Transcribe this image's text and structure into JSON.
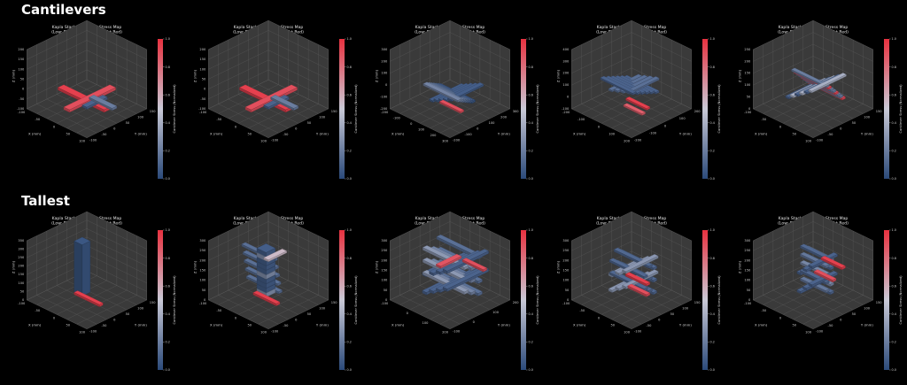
{
  "sections": [
    {
      "title": "Cantilevers"
    },
    {
      "title": "Tallest"
    }
  ],
  "panel_title_line1": "Kapla Stack Cantilever Stress Map",
  "panel_title_line2": "(Low: Deep Blue, High: Bright Red)",
  "colorbar_label": "Cantilever Stress (Normalized)",
  "colorbar_ticks": [
    "0.0",
    "0.2",
    "0.4",
    "0.6",
    "0.8",
    "1.0"
  ],
  "axis_labels": {
    "x": "X (mm)",
    "y": "Y (mm)",
    "z": "Z (mm)"
  },
  "colors": {
    "low": "#2b4a7a",
    "mid": "#c9c9d6",
    "high": "#e8313f",
    "background": "#000000",
    "pane": "#3a3a3a"
  },
  "chart_data": [
    {
      "type": "3d-bar",
      "section": "Cantilevers",
      "index": 1,
      "title": "Kapla Stack Cantilever Stress Map\n(Low: Deep Blue, High: Bright Red)",
      "z_ticks": [
        "200",
        "150",
        "100",
        "50",
        "0",
        "-50",
        "-100"
      ],
      "x_ticks": [
        "-100",
        "-50",
        "0",
        "50",
        "100"
      ],
      "y_ticks": [
        "150",
        "100",
        "50",
        "0",
        "-50",
        "-100"
      ],
      "stress_range": [
        0,
        1
      ]
    },
    {
      "type": "3d-bar",
      "section": "Cantilevers",
      "index": 2,
      "title": "Kapla Stack Cantilever Stress Map\n(Low: Deep Blue, High: Bright Red)",
      "z_ticks": [
        "200",
        "150",
        "100",
        "50",
        "0",
        "-50",
        "-100"
      ],
      "x_ticks": [
        "-100",
        "-50",
        "0",
        "50",
        "100"
      ],
      "y_ticks": [
        "150",
        "100",
        "50",
        "0",
        "-50",
        "-100"
      ],
      "stress_range": [
        0,
        1
      ]
    },
    {
      "type": "3d-bar",
      "section": "Cantilevers",
      "index": 3,
      "title": "Kapla Stack Cantilever Stress Map\n(Low: Deep Blue, High: Bright Red)",
      "z_ticks": [
        "300",
        "200",
        "100",
        "0",
        "-100",
        "-200"
      ],
      "x_ticks": [
        "-200",
        "-100",
        "0",
        "100",
        "200",
        "300"
      ],
      "y_ticks": [
        "300",
        "200",
        "100",
        "0",
        "-100",
        "-200"
      ],
      "stress_range": [
        0,
        1
      ]
    },
    {
      "type": "3d-bar",
      "section": "Cantilevers",
      "index": 4,
      "title": "Kapla Stack Cantilever Stress Map\n(Low: Deep Blue, High: Bright Red)",
      "z_ticks": [
        "400",
        "300",
        "200",
        "100",
        "0",
        "-100"
      ],
      "x_ticks": [
        "-200",
        "-100",
        "0",
        "100",
        "200"
      ],
      "y_ticks": [
        "200",
        "100",
        "0",
        "-100",
        "-200"
      ],
      "stress_range": [
        0,
        1
      ]
    },
    {
      "type": "3d-bar",
      "section": "Cantilevers",
      "index": 5,
      "title": "Kapla Stack Cantilever Stress Map\n(Low: Deep Blue, High: Bright Red)",
      "z_ticks": [
        "250",
        "200",
        "150",
        "100",
        "50",
        "0"
      ],
      "x_ticks": [
        "-100",
        "-50",
        "0",
        "50",
        "100"
      ],
      "y_ticks": [
        "150",
        "100",
        "50",
        "0",
        "-50",
        "-100"
      ],
      "stress_range": [
        0,
        1
      ]
    },
    {
      "type": "3d-bar",
      "section": "Tallest",
      "index": 1,
      "title": "Kapla Stack Cantilever Stress Map\n(Low: Deep Blue, High: Bright Red)",
      "z_ticks": [
        "350",
        "300",
        "250",
        "200",
        "150",
        "100",
        "50",
        "0"
      ],
      "x_ticks": [
        "-100",
        "-50",
        "0",
        "50",
        "100"
      ],
      "y_ticks": [
        "150",
        "100",
        "50",
        "0",
        "-50",
        "-100"
      ],
      "stress_range": [
        0,
        1
      ]
    },
    {
      "type": "3d-bar",
      "section": "Tallest",
      "index": 2,
      "title": "Kapla Stack Cantilever Stress Map\n(Low: Deep Blue, High: Bright Red)",
      "z_ticks": [
        "300",
        "250",
        "200",
        "150",
        "100",
        "50",
        "0"
      ],
      "x_ticks": [
        "-100",
        "-50",
        "0",
        "50",
        "100"
      ],
      "y_ticks": [
        "150",
        "100",
        "50",
        "0",
        "-50",
        "-100"
      ],
      "stress_range": [
        0,
        1
      ]
    },
    {
      "type": "3d-bar",
      "section": "Tallest",
      "index": 3,
      "title": "Kapla Stack Cantilever Stress Map\n(Low: Deep Blue, High: Bright Red)",
      "z_ticks": [
        "300",
        "250",
        "200",
        "150",
        "100",
        "50",
        "0"
      ],
      "x_ticks": [
        "-100",
        "0",
        "100",
        "200"
      ],
      "y_ticks": [
        "200",
        "100",
        "0",
        "-100"
      ],
      "stress_range": [
        0,
        1
      ]
    },
    {
      "type": "3d-bar",
      "section": "Tallest",
      "index": 4,
      "title": "Kapla Stack Cantilever Stress Map\n(Low: Deep Blue, High: Bright Red)",
      "z_ticks": [
        "300",
        "250",
        "200",
        "150",
        "100",
        "50",
        "0"
      ],
      "x_ticks": [
        "-100",
        "-50",
        "0",
        "50",
        "100"
      ],
      "y_ticks": [
        "150",
        "100",
        "50",
        "0",
        "-50",
        "-100"
      ],
      "stress_range": [
        0,
        1
      ]
    },
    {
      "type": "3d-bar",
      "section": "Tallest",
      "index": 5,
      "title": "Kapla Stack Cantilever Stress Map\n(Low: Deep Blue, High: Bright Red)",
      "z_ticks": [
        "300",
        "250",
        "200",
        "150",
        "100",
        "50",
        "0"
      ],
      "x_ticks": [
        "-100",
        "-50",
        "0",
        "50",
        "100"
      ],
      "y_ticks": [
        "150",
        "100",
        "50",
        "0",
        "-50",
        "-100"
      ],
      "stress_range": [
        0,
        1
      ]
    }
  ]
}
